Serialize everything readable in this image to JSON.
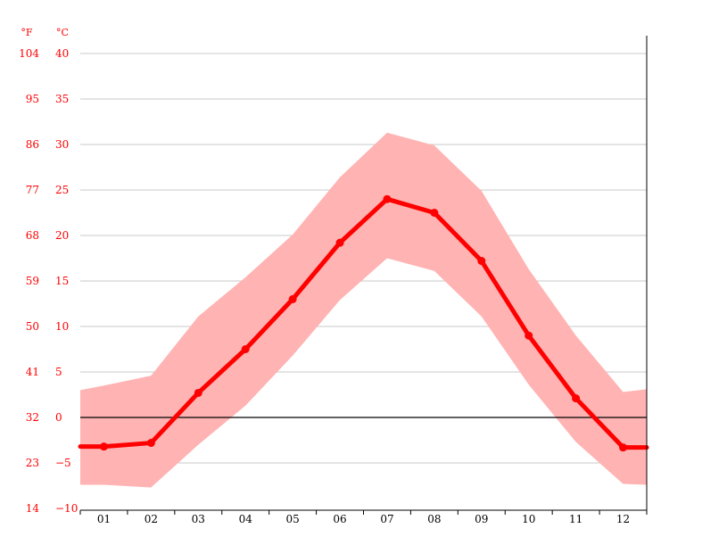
{
  "chart_data": {
    "type": "line",
    "title": "",
    "xlabel": "",
    "ylabel": "",
    "unit_labels": {
      "fahrenheit": "°F",
      "celsius": "°C"
    },
    "categories": [
      "01",
      "02",
      "03",
      "04",
      "05",
      "06",
      "07",
      "08",
      "09",
      "10",
      "11",
      "12"
    ],
    "series": [
      {
        "values": [
          -3.2,
          -2.8,
          2.7,
          7.5,
          13.0,
          19.2,
          24.0,
          22.5,
          17.2,
          9.0,
          2.1,
          -3.3
        ]
      }
    ],
    "range_band": {
      "upper": [
        3.5,
        4.6,
        11.1,
        15.4,
        20.1,
        26.4,
        31.3,
        29.9,
        24.9,
        16.3,
        9.0,
        2.8
      ],
      "lower": [
        -7.4,
        -7.7,
        -3.0,
        1.3,
        6.8,
        12.9,
        17.5,
        16.1,
        11.1,
        3.6,
        -2.7,
        -7.3
      ],
      "edge_values": {
        "left_upper": 3.0,
        "left_lower": -7.4,
        "right_upper": 3.1,
        "right_lower": -7.4
      }
    },
    "ylim": [
      -10,
      40
    ],
    "celsius_ticks": [
      "−10",
      "−5",
      "0",
      "5",
      "10",
      "15",
      "20",
      "25",
      "30",
      "35",
      "40"
    ],
    "fahrenheit_ticks": [
      "14",
      "23",
      "32",
      "41",
      "50",
      "59",
      "68",
      "77",
      "86",
      "95",
      "104"
    ],
    "grid": true,
    "zero_line": true,
    "colors": {
      "line": "#ff0000",
      "band": "#ffb3b3",
      "grid": "#c8c8c8",
      "axis_labels": "#ff0000",
      "zero_line": "#000000"
    }
  }
}
